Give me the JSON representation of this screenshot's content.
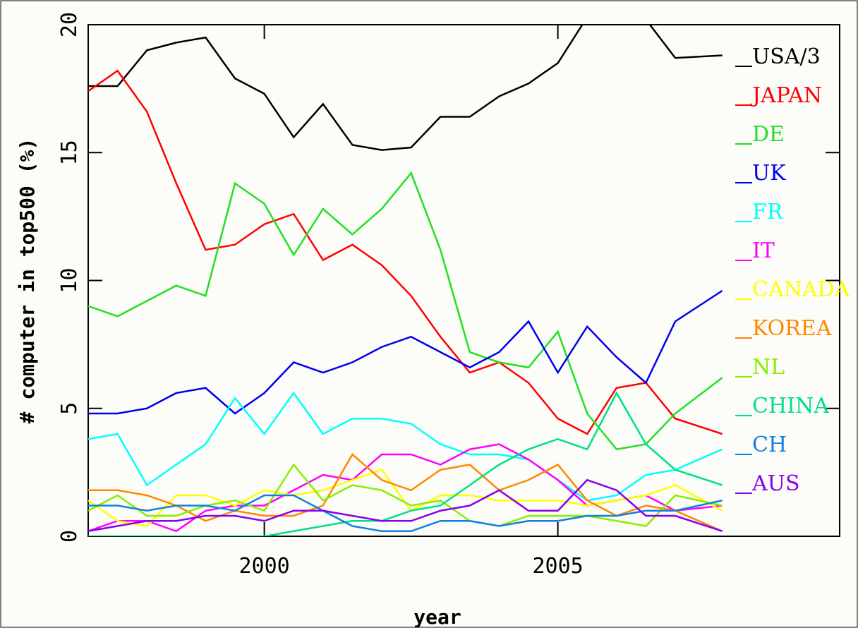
{
  "chart_data": {
    "type": "line",
    "x_label": "year",
    "y_label": "# computer in top500 (%)",
    "x": [
      1997,
      1997.5,
      1998,
      1998.5,
      1999,
      1999.5,
      2000,
      2000.5,
      2001,
      2001.5,
      2002,
      2002.5,
      2003,
      2003.5,
      2004,
      2004.5,
      2005,
      2005.5,
      2006,
      2006.5,
      2007,
      2007.8
    ],
    "xlim": [
      1997,
      2009.8
    ],
    "ylim": [
      0,
      20
    ],
    "xticks": [
      2000,
      2005
    ],
    "yticks": [
      0,
      5,
      10,
      15,
      20
    ],
    "series": [
      {
        "name": "USA/3",
        "color": "#000000",
        "values": [
          17.6,
          17.6,
          19.0,
          19.3,
          19.5,
          17.9,
          17.3,
          15.6,
          16.9,
          15.3,
          15.1,
          15.2,
          16.4,
          16.4,
          17.2,
          17.7,
          18.5,
          20.3,
          20.8,
          20.2,
          18.7,
          18.8
        ]
      },
      {
        "name": "JAPAN",
        "color": "#ff0000",
        "values": [
          17.4,
          18.2,
          16.6,
          13.8,
          11.2,
          11.4,
          12.2,
          12.6,
          10.8,
          11.4,
          10.6,
          9.4,
          7.8,
          6.4,
          6.8,
          6.0,
          4.6,
          4.0,
          5.8,
          6.0,
          4.6,
          4.0
        ]
      },
      {
        "name": "DE",
        "color": "#22e022",
        "values": [
          9.0,
          8.6,
          9.2,
          9.8,
          9.4,
          13.8,
          13.0,
          11.0,
          12.8,
          11.8,
          12.8,
          14.2,
          11.2,
          7.2,
          6.8,
          6.6,
          8.0,
          4.8,
          3.4,
          3.6,
          4.8,
          6.2
        ]
      },
      {
        "name": "UK",
        "color": "#0000ee",
        "values": [
          4.8,
          4.8,
          5.0,
          5.6,
          5.8,
          4.8,
          5.6,
          6.8,
          6.4,
          6.8,
          7.4,
          7.8,
          7.2,
          6.6,
          7.2,
          8.4,
          6.4,
          8.2,
          7.0,
          6.0,
          8.4,
          9.6
        ]
      },
      {
        "name": "FR",
        "color": "#00ffff",
        "values": [
          3.8,
          4.0,
          2.0,
          2.8,
          3.6,
          5.4,
          4.0,
          5.6,
          4.0,
          4.6,
          4.6,
          4.4,
          3.6,
          3.2,
          3.2,
          3.0,
          2.2,
          1.4,
          1.6,
          2.4,
          2.6,
          3.4
        ]
      },
      {
        "name": "IT",
        "color": "#ff00ff",
        "values": [
          0.2,
          0.6,
          0.6,
          0.2,
          1.0,
          1.2,
          1.2,
          1.8,
          2.4,
          2.2,
          3.2,
          3.2,
          2.8,
          3.4,
          3.6,
          3.0,
          2.2,
          1.2,
          1.4,
          1.6,
          1.0,
          1.2
        ]
      },
      {
        "name": "CANADA",
        "color": "#ffff00",
        "values": [
          1.4,
          0.6,
          0.4,
          1.6,
          1.6,
          1.2,
          1.8,
          1.6,
          1.8,
          2.2,
          2.6,
          1.0,
          1.6,
          1.6,
          1.4,
          1.4,
          1.4,
          1.2,
          1.4,
          1.6,
          2.0,
          1.0
        ]
      },
      {
        "name": "KOREA",
        "color": "#ff8800",
        "values": [
          1.8,
          1.8,
          1.6,
          1.2,
          0.6,
          1.0,
          0.8,
          0.8,
          1.2,
          3.2,
          2.2,
          1.8,
          2.6,
          2.8,
          1.8,
          2.2,
          2.8,
          1.4,
          0.8,
          1.2,
          1.0,
          0.2
        ]
      },
      {
        "name": "NL",
        "color": "#88ee00",
        "values": [
          1.0,
          1.6,
          0.8,
          0.8,
          1.2,
          1.4,
          1.0,
          2.8,
          1.4,
          2.0,
          1.8,
          1.2,
          1.4,
          0.6,
          0.4,
          0.8,
          0.8,
          0.8,
          0.6,
          0.4,
          1.6,
          1.2
        ]
      },
      {
        "name": "CHINA",
        "color": "#00e088",
        "values": [
          0,
          0,
          0,
          0,
          0,
          0,
          0,
          0.2,
          0.4,
          0.6,
          0.6,
          1.0,
          1.2,
          2.0,
          2.8,
          3.4,
          3.8,
          3.4,
          5.6,
          3.6,
          2.6,
          2.0
        ]
      },
      {
        "name": "CH",
        "color": "#1080e0",
        "values": [
          1.2,
          1.2,
          1.0,
          1.2,
          1.2,
          1.0,
          1.6,
          1.6,
          1.0,
          0.4,
          0.2,
          0.2,
          0.6,
          0.6,
          0.4,
          0.6,
          0.6,
          0.8,
          0.8,
          1.0,
          1.0,
          1.4
        ]
      },
      {
        "name": "AUS",
        "color": "#8800ee",
        "values": [
          0.2,
          0.4,
          0.6,
          0.6,
          0.8,
          0.8,
          0.6,
          1.0,
          1.0,
          0.8,
          0.6,
          0.6,
          1.0,
          1.2,
          1.8,
          1.0,
          1.0,
          2.2,
          1.8,
          0.8,
          0.8,
          0.2
        ]
      }
    ]
  }
}
